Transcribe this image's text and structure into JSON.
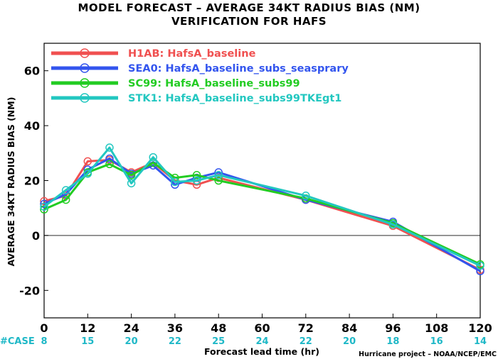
{
  "chart_data": {
    "type": "line",
    "title_line1": "MODEL FORECAST – AVERAGE 34KT RADIUS BIAS (NM)",
    "title_line2": "VERIFICATION FOR HAFS",
    "xlabel": "Forecast lead time (hr)",
    "ylabel": "AVERAGE 34KT RADIUS BIAS (NM)",
    "credit": "Hurricane project – NOAA/NCEP/EMC",
    "xlim": [
      0,
      120
    ],
    "ylim": [
      -30,
      70
    ],
    "x_ticks": [
      0,
      12,
      24,
      36,
      48,
      60,
      72,
      84,
      96,
      108,
      120
    ],
    "y_ticks": [
      -20,
      0,
      20,
      40,
      60
    ],
    "zero_line": 0,
    "case_label": "#CASE",
    "case_color": "#1fb8c7",
    "case_x": [
      0,
      12,
      24,
      36,
      48,
      60,
      72,
      84,
      96,
      108,
      120
    ],
    "case_counts": [
      "8",
      "15",
      "20",
      "22",
      "25",
      "24",
      "22",
      "20",
      "18",
      "16",
      "14"
    ],
    "series": [
      {
        "name": "H1AB: HafsA_baseline",
        "color": "#f05050",
        "x": [
          0,
          6,
          12,
          18,
          24,
          30,
          36,
          42,
          48,
          72,
          96,
          120
        ],
        "y": [
          12.5,
          14.5,
          27,
          27.5,
          23,
          26.5,
          20,
          18.5,
          21,
          13,
          3.5,
          -12.5
        ]
      },
      {
        "name": "SEA0: HafsA_baseline_subs_seasprary",
        "color": "#3355ee",
        "x": [
          0,
          6,
          12,
          18,
          24,
          30,
          36,
          42,
          48,
          72,
          96,
          120
        ],
        "y": [
          11.5,
          15,
          24,
          28,
          22.5,
          25.5,
          18.5,
          21,
          23,
          13,
          5,
          -13
        ]
      },
      {
        "name": "SC99: HafsA_baseline_subs99",
        "color": "#22cc22",
        "x": [
          0,
          6,
          12,
          18,
          24,
          30,
          36,
          42,
          48,
          72,
          96,
          120
        ],
        "y": [
          9.5,
          13,
          23,
          26,
          22,
          26.5,
          21,
          22,
          20,
          13.5,
          4.5,
          -10.5
        ]
      },
      {
        "name": "STK1: HafsA_baseline_subs99TKEgt1",
        "color": "#22c7c0",
        "x": [
          0,
          6,
          12,
          18,
          24,
          30,
          36,
          42,
          48,
          72,
          96,
          120
        ],
        "y": [
          10.5,
          16.5,
          22.5,
          32,
          19,
          28.5,
          19.5,
          20,
          22,
          14.5,
          4,
          -11
        ]
      }
    ]
  }
}
